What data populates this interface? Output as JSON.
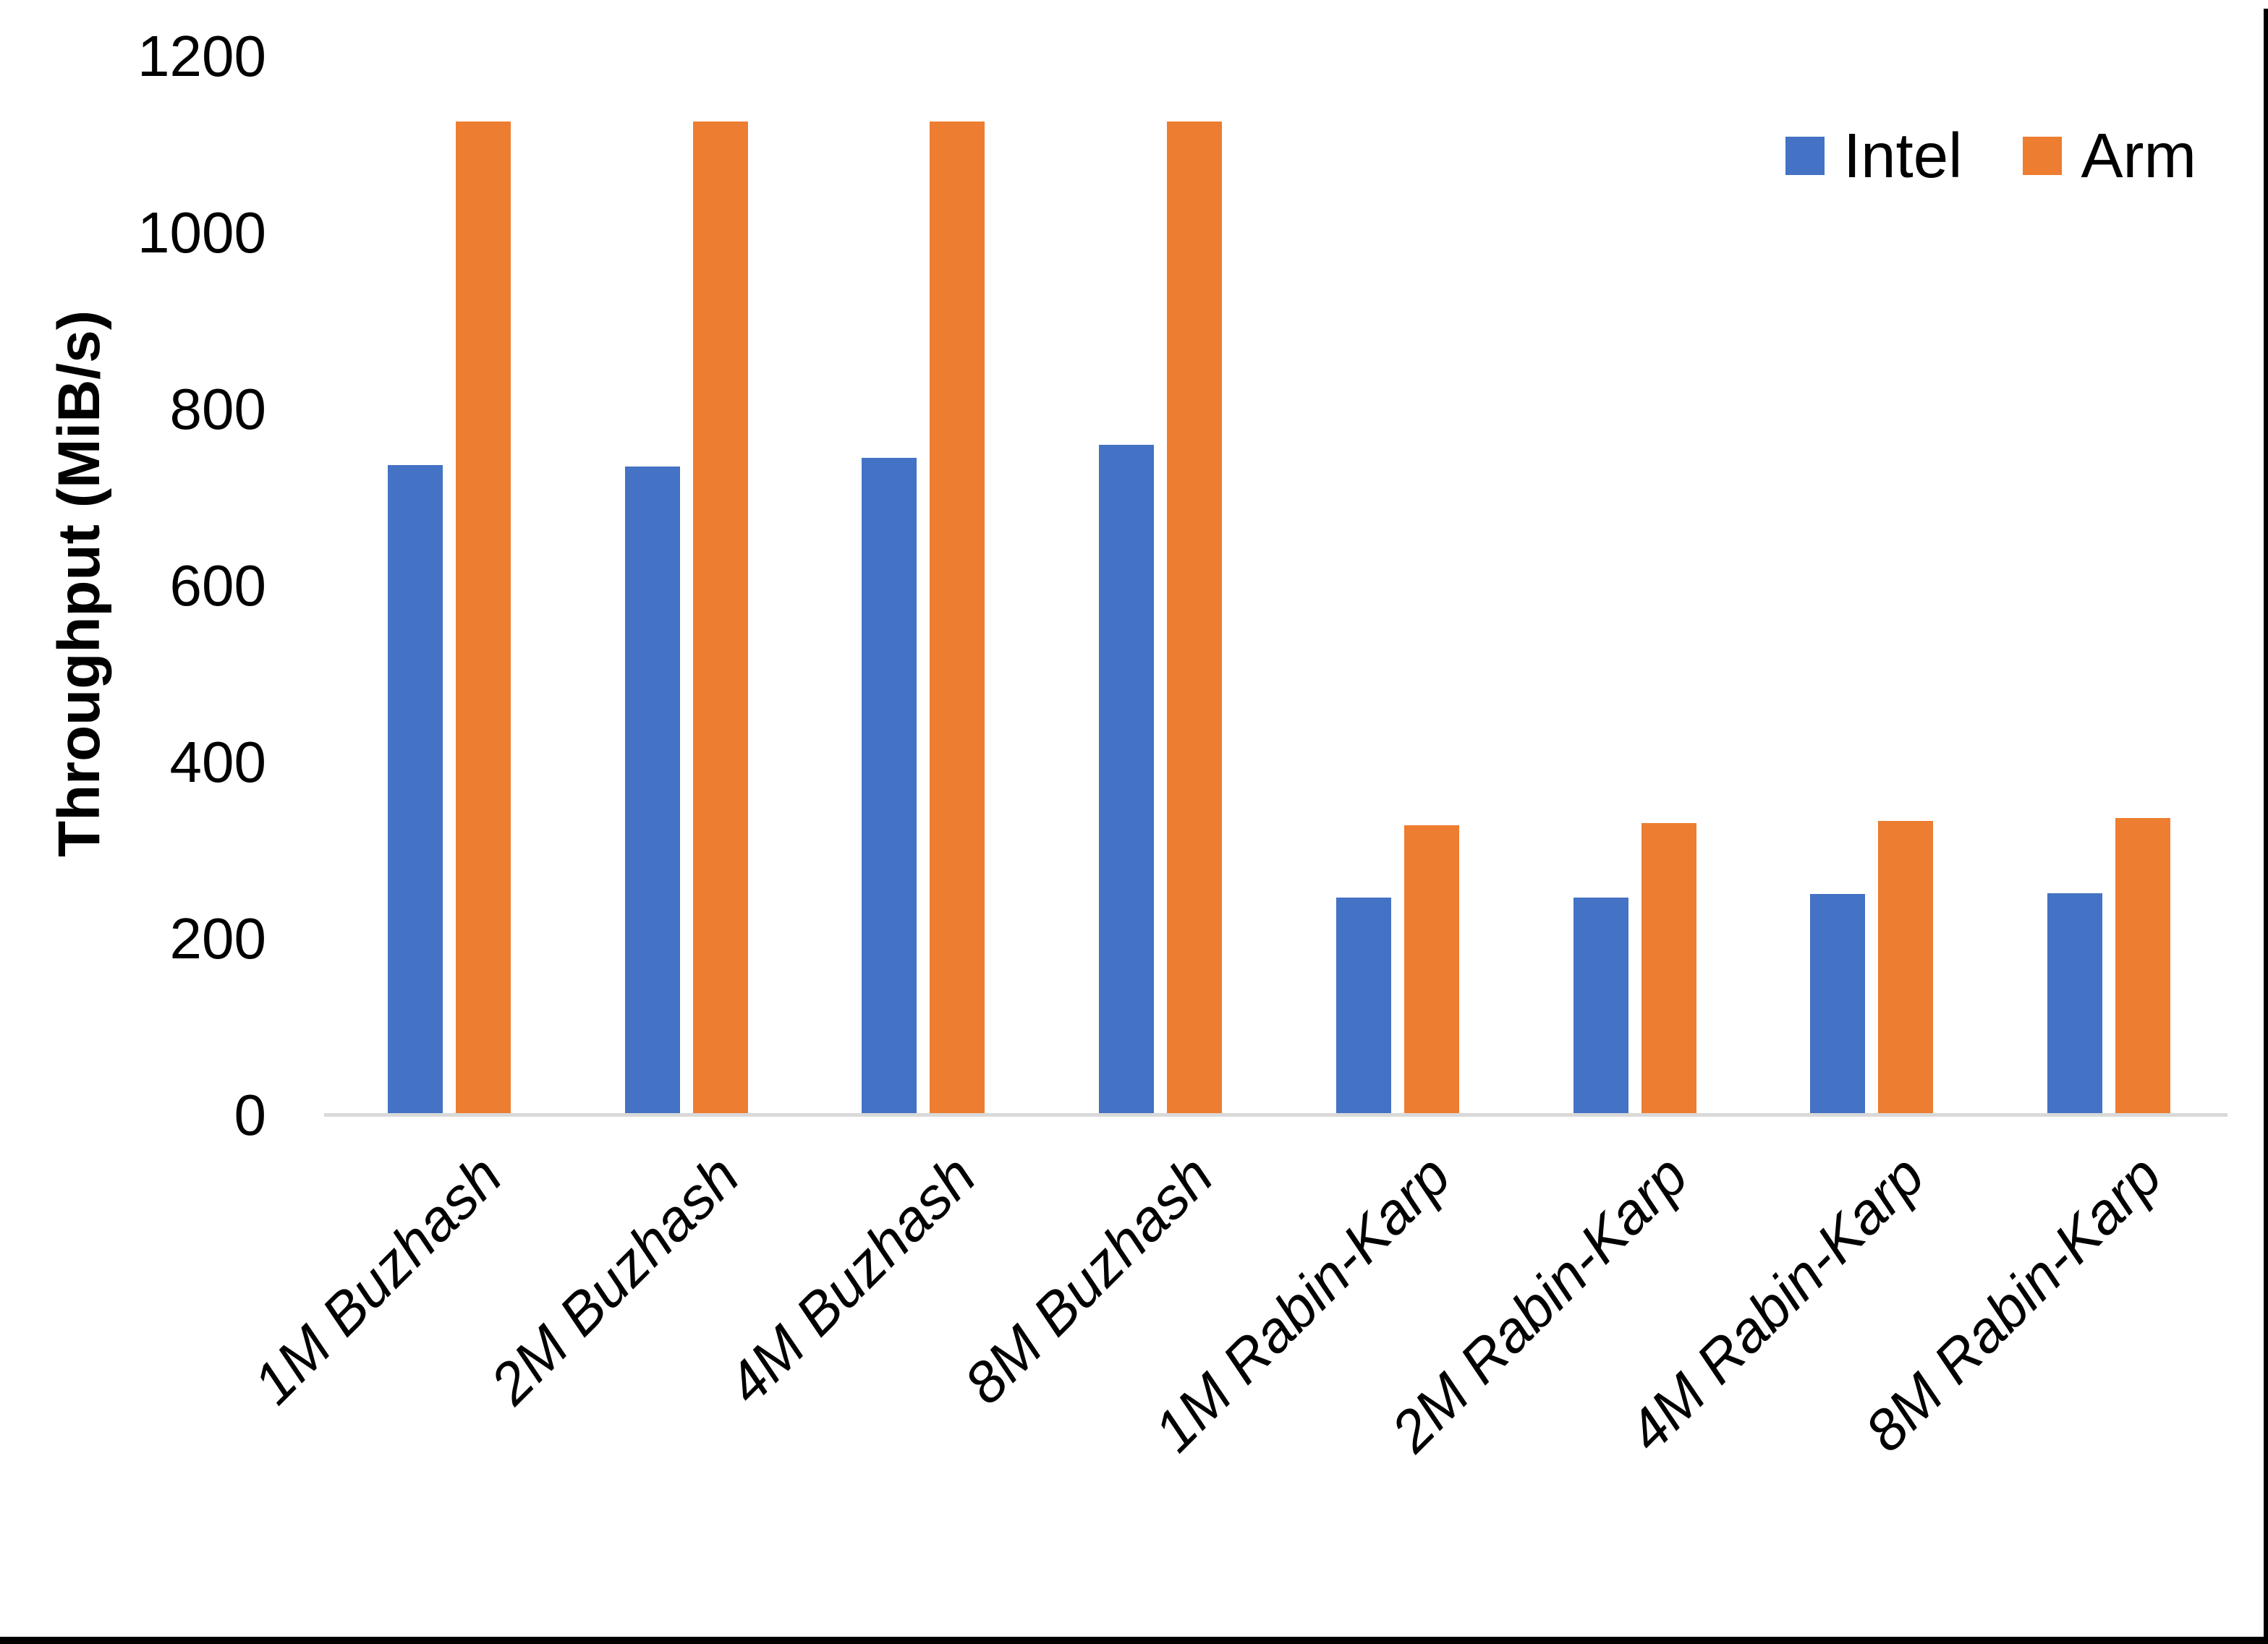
{
  "chart_data": {
    "type": "bar",
    "title": "",
    "xlabel": "",
    "ylabel": "Throughput (MiB/s)",
    "categories": [
      "1M Buzhash",
      "2M Buzhash",
      "4M Buzhash",
      "8M Buzhash",
      "1M Rabin-Karp",
      "2M Rabin-Karp",
      "4M Rabin-Karp",
      "8M Rabin-Karp"
    ],
    "series": [
      {
        "name": "Intel",
        "color": "#4472C4",
        "values": [
          737,
          735,
          745,
          760,
          247,
          247,
          251,
          252
        ]
      },
      {
        "name": "Arm",
        "color": "#ED7D31",
        "values": [
          1126,
          1126,
          1126,
          1126,
          329,
          331,
          334,
          337
        ]
      }
    ],
    "ylim": [
      0,
      1200
    ],
    "yticks": [
      0,
      200,
      400,
      600,
      800,
      1000,
      1200
    ],
    "grid": false,
    "legend_position": "top-right",
    "category_label_rotation_deg": 45,
    "colors": {
      "axis_line": "#D9D9D9",
      "text": "#000000",
      "screenshot_border": "#000000"
    }
  }
}
